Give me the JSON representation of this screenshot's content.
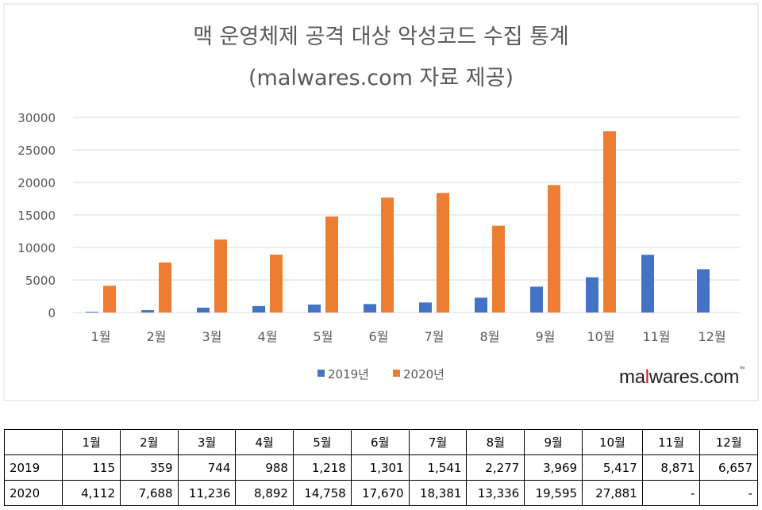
{
  "chart_data": {
    "type": "bar",
    "title": "맥 운영체제 공격 대상 악성코드 수집  통계",
    "subtitle": "(malwares.com 자료 제공)",
    "categories": [
      "1월",
      "2월",
      "3월",
      "4월",
      "5월",
      "6월",
      "7월",
      "8월",
      "9월",
      "10월",
      "11월",
      "12월"
    ],
    "series": [
      {
        "name": "2019년",
        "color": "#4472C4",
        "values": [
          115,
          359,
          744,
          988,
          1218,
          1301,
          1541,
          2277,
          3969,
          5417,
          8871,
          6657
        ]
      },
      {
        "name": "2020년",
        "color": "#ED7D31",
        "values": [
          4112,
          7688,
          11236,
          8892,
          14758,
          17670,
          18381,
          13336,
          19595,
          27881,
          null,
          null
        ]
      }
    ],
    "ylim": [
      0,
      30000
    ],
    "yticks": [
      "0",
      "5000",
      "10000",
      "15000",
      "20000",
      "25000",
      "30000"
    ],
    "grid": true,
    "legend": "bottom"
  },
  "logo": {
    "text_before": "ma",
    "text_l": "l",
    "text_after": "wares.com",
    "tm": "™"
  },
  "table": {
    "header": [
      "",
      "1월",
      "2월",
      "3월",
      "4월",
      "5월",
      "6월",
      "7월",
      "8월",
      "9월",
      "10월",
      "11월",
      "12월"
    ],
    "rows": [
      [
        "2019",
        "115",
        "359",
        "744",
        "988",
        "1,218",
        "1,301",
        "1,541",
        "2,277",
        "3,969",
        "5,417",
        "8,871",
        "6,657"
      ],
      [
        "2020",
        "4,112",
        "7,688",
        "11,236",
        "8,892",
        "14,758",
        "17,670",
        "18,381",
        "13,336",
        "19,595",
        "27,881",
        "-",
        "-"
      ]
    ]
  }
}
